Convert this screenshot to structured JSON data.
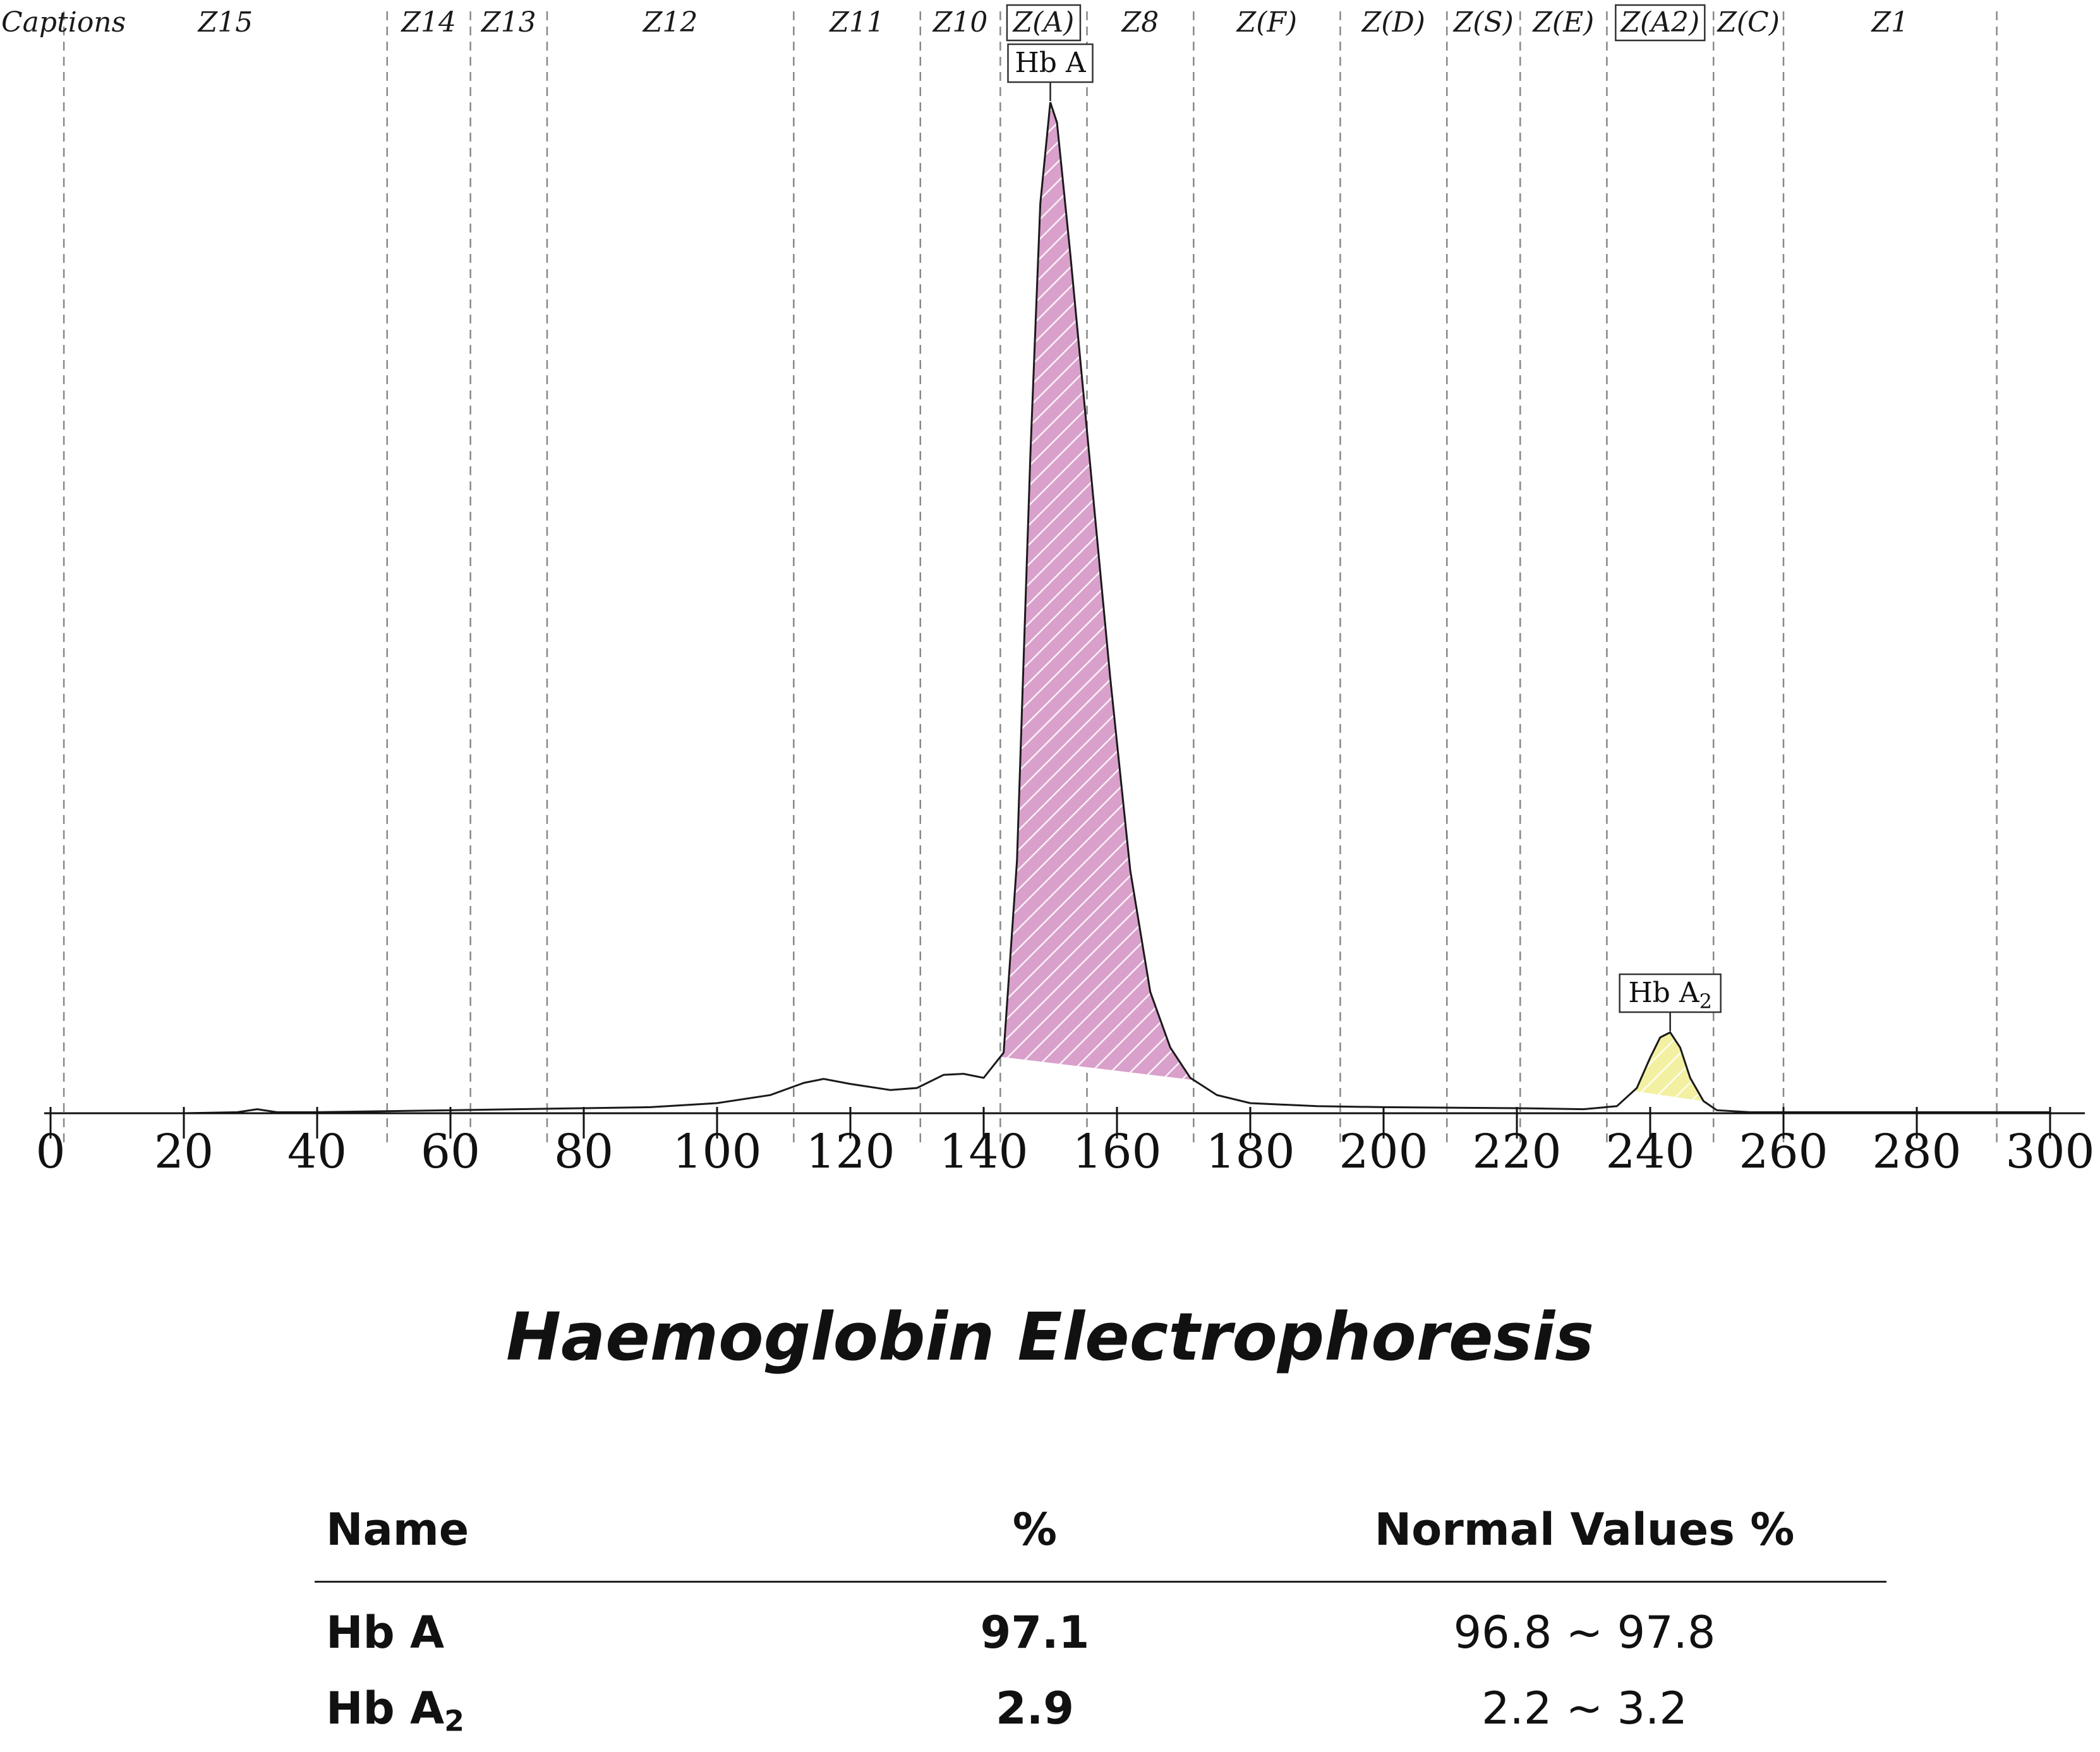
{
  "chart_data": {
    "type": "area",
    "xlim": [
      0,
      300
    ],
    "x_ticks": [
      0,
      20,
      40,
      60,
      80,
      100,
      120,
      140,
      160,
      180,
      200,
      220,
      240,
      260,
      280,
      300
    ],
    "zones": [
      {
        "label": "Captions"
      },
      {
        "label": "Z15"
      },
      {
        "label": "Z14"
      },
      {
        "label": "Z13"
      },
      {
        "label": "Z12"
      },
      {
        "label": "Z11"
      },
      {
        "label": "Z10"
      },
      {
        "label": "Z(A)",
        "boxed": true
      },
      {
        "label": "Z8"
      },
      {
        "label": "Z(F)"
      },
      {
        "label": "Z(D)"
      },
      {
        "label": "Z(S)"
      },
      {
        "label": "Z(E)"
      },
      {
        "label": "Z(A2)",
        "boxed": true
      },
      {
        "label": "Z(C)"
      },
      {
        "label": "Z1"
      }
    ],
    "zone_boundaries": [
      2,
      50.5,
      63,
      74.5,
      111.5,
      130.5,
      142.5,
      155.5,
      171.5,
      193.5,
      209.5,
      220.5,
      233.5,
      249.5,
      260,
      292
    ],
    "curve": [
      [
        0,
        0
      ],
      [
        20,
        0
      ],
      [
        28,
        0.1
      ],
      [
        31,
        0.4
      ],
      [
        34,
        0.1
      ],
      [
        40,
        0.1
      ],
      [
        60,
        0.3
      ],
      [
        80,
        0.5
      ],
      [
        90,
        0.6
      ],
      [
        100,
        1.0
      ],
      [
        108,
        1.8
      ],
      [
        113,
        3.0
      ],
      [
        116,
        3.4
      ],
      [
        120,
        2.9
      ],
      [
        126,
        2.3
      ],
      [
        130,
        2.5
      ],
      [
        134,
        3.8
      ],
      [
        137,
        3.9
      ],
      [
        140,
        3.5
      ],
      [
        143,
        6
      ],
      [
        145,
        25
      ],
      [
        147,
        65
      ],
      [
        148.5,
        90
      ],
      [
        150,
        100
      ],
      [
        151,
        98
      ],
      [
        153,
        85
      ],
      [
        156,
        64
      ],
      [
        159,
        43
      ],
      [
        162,
        24
      ],
      [
        165,
        12
      ],
      [
        168,
        6.5
      ],
      [
        171,
        3.5
      ],
      [
        175,
        1.8
      ],
      [
        180,
        1.0
      ],
      [
        190,
        0.7
      ],
      [
        200,
        0.6
      ],
      [
        220,
        0.5
      ],
      [
        230,
        0.4
      ],
      [
        235,
        0.7
      ],
      [
        238,
        2.5
      ],
      [
        240,
        5.5
      ],
      [
        241.5,
        7.5
      ],
      [
        243,
        8.0
      ],
      [
        244.5,
        6.5
      ],
      [
        246,
        3.5
      ],
      [
        248,
        1.2
      ],
      [
        250,
        0.3
      ],
      [
        255,
        0.1
      ],
      [
        260,
        0.1
      ],
      [
        300,
        0.1
      ]
    ],
    "peaks": [
      {
        "label": "Hb A",
        "from": 142.5,
        "to": 171.5,
        "apex": 150,
        "color": "#d9a0cb"
      },
      {
        "label": "Hb A2",
        "from": 237.5,
        "to": 248,
        "apex": 243,
        "color": "#f3f0a2"
      }
    ],
    "grid": false
  },
  "report": {
    "title": "Haemoglobin Electrophoresis",
    "headers": {
      "name": "Name",
      "pct": "%",
      "normal": "Normal Values %"
    },
    "rows": [
      {
        "name": "Hb A",
        "pct": "97.1",
        "normal": "96.8 ~ 97.8"
      },
      {
        "name": "Hb A",
        "name_sub": "2",
        "pct": "2.9",
        "normal": "2.2 ~  3.2"
      }
    ]
  }
}
